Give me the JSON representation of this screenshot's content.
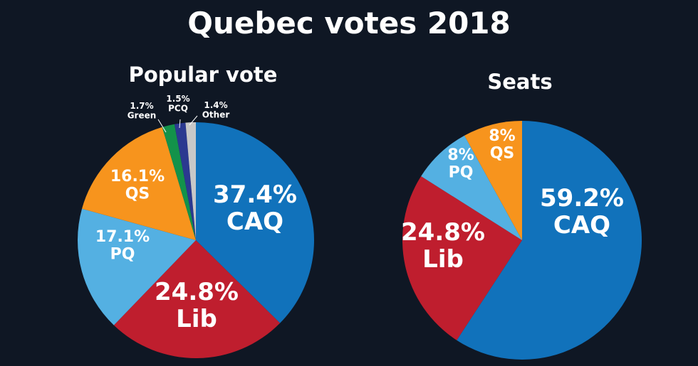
{
  "title": "Quebec votes 2018",
  "chart_data": [
    {
      "type": "pie",
      "title": "Popular vote",
      "slices": [
        {
          "label": "CAQ",
          "value": 37.4,
          "text": "37.4%",
          "color": "#1172bb"
        },
        {
          "label": "Lib",
          "value": 24.8,
          "text": "24.8%",
          "color": "#bf1e2e"
        },
        {
          "label": "PQ",
          "value": 17.1,
          "text": "17.1%",
          "color": "#54b0e2"
        },
        {
          "label": "QS",
          "value": 16.1,
          "text": "16.1%",
          "color": "#f7941d"
        },
        {
          "label": "Green",
          "value": 1.7,
          "text": "1.7%",
          "color": "#13924a"
        },
        {
          "label": "PCQ",
          "value": 1.5,
          "text": "1.5%",
          "color": "#2b3990"
        },
        {
          "label": "Other",
          "value": 1.4,
          "text": "1.4%",
          "color": "#c8c8c8"
        }
      ]
    },
    {
      "type": "pie",
      "title": "Seats",
      "slices": [
        {
          "label": "CAQ",
          "value": 59.2,
          "text": "59.2%",
          "color": "#1172bb"
        },
        {
          "label": "Lib",
          "value": 24.8,
          "text": "24.8%",
          "color": "#bf1e2e"
        },
        {
          "label": "PQ",
          "value": 8,
          "text": "8%",
          "color": "#54b0e2"
        },
        {
          "label": "QS",
          "value": 8,
          "text": "8%",
          "color": "#f7941d"
        }
      ]
    }
  ]
}
